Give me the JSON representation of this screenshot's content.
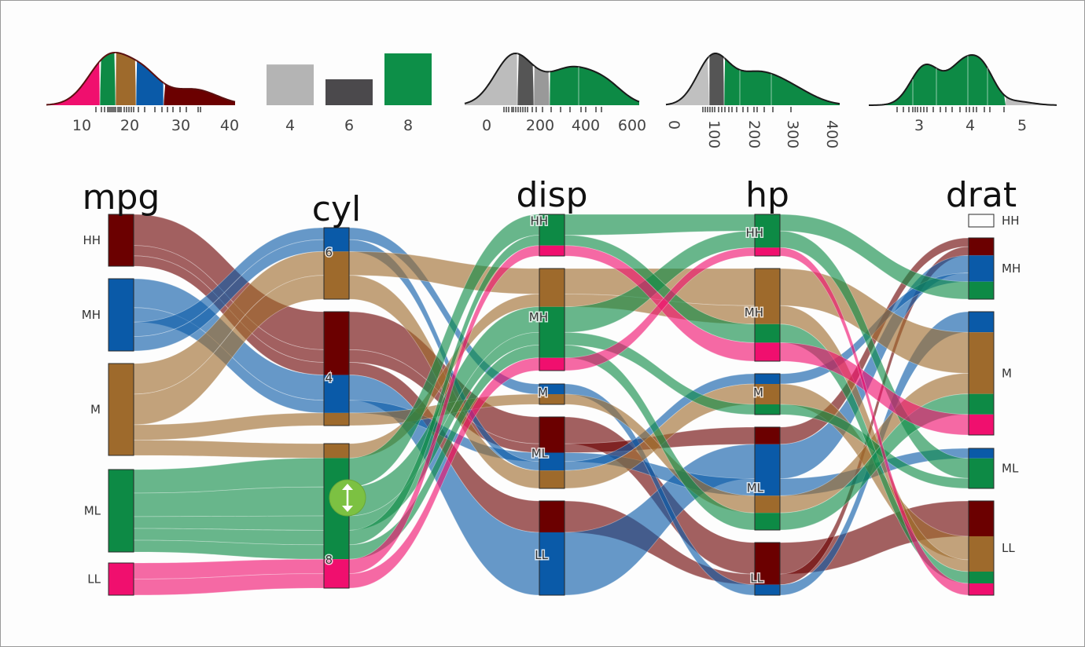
{
  "chart_data": {
    "type": "parallel-sets",
    "axes": [
      {
        "key": "mpg",
        "title": "mpg",
        "categories": [
          "HH",
          "MH",
          "M",
          "ML",
          "LL"
        ]
      },
      {
        "key": "cyl",
        "title": "cyl",
        "categories": [
          "6",
          "4",
          "8"
        ]
      },
      {
        "key": "disp",
        "title": "disp",
        "categories": [
          "HH",
          "MH",
          "M",
          "ML",
          "LL"
        ]
      },
      {
        "key": "hp",
        "title": "hp",
        "categories": [
          "HH",
          "MH",
          "M",
          "ML",
          "LL"
        ]
      },
      {
        "key": "drat",
        "title": "drat",
        "categories": [
          "HH",
          "MH",
          "M",
          "ML",
          "LL"
        ]
      }
    ],
    "color_groups": [
      {
        "name": "HH",
        "color": "#6b0000"
      },
      {
        "name": "MH",
        "color": "#0a5aa8"
      },
      {
        "name": "M",
        "color": "#9e6a2c"
      },
      {
        "name": "ML",
        "color": "#0d8a45"
      },
      {
        "name": "LL",
        "color": "#f00f6e"
      }
    ],
    "mini_plots": [
      {
        "variable": "mpg",
        "type": "density",
        "ticks": [
          "10",
          "20",
          "30",
          "40"
        ],
        "xlim": [
          2,
          40
        ]
      },
      {
        "variable": "cyl",
        "type": "bar",
        "categories": [
          "4",
          "6",
          "8"
        ],
        "values": [
          11,
          7,
          14
        ]
      },
      {
        "variable": "disp",
        "type": "density",
        "ticks": [
          "0",
          "200",
          "400",
          "600"
        ],
        "xlim": [
          0,
          600
        ]
      },
      {
        "variable": "hp",
        "type": "density",
        "ticks": [
          "0",
          "100",
          "200",
          "300",
          "400"
        ],
        "xlim": [
          0,
          420
        ]
      },
      {
        "variable": "drat",
        "type": "density",
        "ticks": [
          "3",
          "4",
          "5"
        ],
        "xlim": [
          2.0,
          5.5
        ]
      }
    ],
    "drag_handle": {
      "axis": "cyl",
      "category": "8",
      "icon": "vertical-resize-icon"
    }
  }
}
